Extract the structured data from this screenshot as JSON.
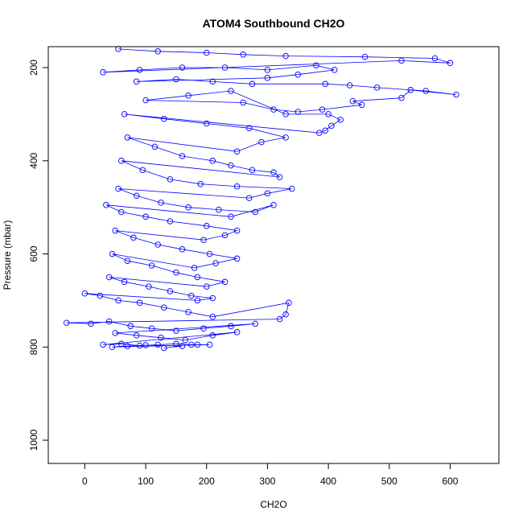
{
  "chart_data": {
    "type": "scatter",
    "title": "ATOM4 Southbound CH2O",
    "xlabel": "CH2O",
    "ylabel": "Pressure (mbar)",
    "xlim": [
      -60,
      680
    ],
    "ylim": [
      1050,
      155
    ],
    "y_reversed": true,
    "x_ticks": [
      0,
      100,
      200,
      300,
      400,
      500,
      600
    ],
    "y_ticks": [
      200,
      400,
      600,
      800,
      1000
    ],
    "marker": "open-circle",
    "connect_points": true,
    "grid": false,
    "legend": "none",
    "series_color": "#0000ff",
    "points": [
      [
        55,
        160
      ],
      [
        120,
        165
      ],
      [
        200,
        168
      ],
      [
        260,
        172
      ],
      [
        330,
        175
      ],
      [
        460,
        177
      ],
      [
        575,
        180
      ],
      [
        600,
        190
      ],
      [
        520,
        185
      ],
      [
        30,
        210
      ],
      [
        90,
        205
      ],
      [
        160,
        200
      ],
      [
        230,
        200
      ],
      [
        300,
        205
      ],
      [
        380,
        195
      ],
      [
        410,
        205
      ],
      [
        350,
        215
      ],
      [
        300,
        222
      ],
      [
        85,
        230
      ],
      [
        150,
        225
      ],
      [
        210,
        230
      ],
      [
        275,
        235
      ],
      [
        395,
        235
      ],
      [
        435,
        238
      ],
      [
        480,
        243
      ],
      [
        560,
        250
      ],
      [
        610,
        258
      ],
      [
        535,
        248
      ],
      [
        520,
        265
      ],
      [
        440,
        272
      ],
      [
        455,
        280
      ],
      [
        390,
        290
      ],
      [
        350,
        295
      ],
      [
        310,
        290
      ],
      [
        260,
        275
      ],
      [
        100,
        270
      ],
      [
        170,
        260
      ],
      [
        240,
        250
      ],
      [
        330,
        300
      ],
      [
        400,
        300
      ],
      [
        420,
        312
      ],
      [
        405,
        325
      ],
      [
        395,
        335
      ],
      [
        385,
        340
      ],
      [
        65,
        300
      ],
      [
        130,
        310
      ],
      [
        200,
        320
      ],
      [
        270,
        330
      ],
      [
        330,
        350
      ],
      [
        290,
        360
      ],
      [
        250,
        380
      ],
      [
        70,
        350
      ],
      [
        115,
        370
      ],
      [
        160,
        390
      ],
      [
        210,
        400
      ],
      [
        240,
        410
      ],
      [
        275,
        420
      ],
      [
        310,
        425
      ],
      [
        320,
        435
      ],
      [
        60,
        400
      ],
      [
        95,
        420
      ],
      [
        140,
        440
      ],
      [
        190,
        450
      ],
      [
        250,
        455
      ],
      [
        340,
        460
      ],
      [
        300,
        470
      ],
      [
        270,
        480
      ],
      [
        55,
        460
      ],
      [
        85,
        475
      ],
      [
        125,
        490
      ],
      [
        170,
        500
      ],
      [
        220,
        505
      ],
      [
        280,
        510
      ],
      [
        310,
        495
      ],
      [
        240,
        520
      ],
      [
        35,
        495
      ],
      [
        60,
        510
      ],
      [
        100,
        520
      ],
      [
        140,
        530
      ],
      [
        200,
        540
      ],
      [
        250,
        550
      ],
      [
        230,
        560
      ],
      [
        195,
        570
      ],
      [
        50,
        550
      ],
      [
        80,
        565
      ],
      [
        120,
        580
      ],
      [
        160,
        590
      ],
      [
        205,
        600
      ],
      [
        250,
        610
      ],
      [
        215,
        620
      ],
      [
        180,
        630
      ],
      [
        45,
        600
      ],
      [
        70,
        615
      ],
      [
        110,
        625
      ],
      [
        150,
        640
      ],
      [
        185,
        650
      ],
      [
        230,
        660
      ],
      [
        200,
        670
      ],
      [
        40,
        650
      ],
      [
        65,
        660
      ],
      [
        105,
        670
      ],
      [
        140,
        680
      ],
      [
        175,
        690
      ],
      [
        210,
        695
      ],
      [
        185,
        700
      ],
      [
        0,
        685
      ],
      [
        25,
        690
      ],
      [
        55,
        700
      ],
      [
        90,
        705
      ],
      [
        130,
        715
      ],
      [
        170,
        725
      ],
      [
        210,
        735
      ],
      [
        335,
        705
      ],
      [
        330,
        730
      ],
      [
        320,
        740
      ],
      [
        -30,
        748
      ],
      [
        10,
        750
      ],
      [
        40,
        745
      ],
      [
        75,
        755
      ],
      [
        110,
        760
      ],
      [
        150,
        765
      ],
      [
        195,
        760
      ],
      [
        240,
        755
      ],
      [
        280,
        750
      ],
      [
        50,
        770
      ],
      [
        85,
        775
      ],
      [
        125,
        780
      ],
      [
        165,
        785
      ],
      [
        210,
        775
      ],
      [
        250,
        768
      ],
      [
        30,
        795
      ],
      [
        60,
        793
      ],
      [
        90,
        797
      ],
      [
        120,
        795
      ],
      [
        150,
        793
      ],
      [
        175,
        795
      ],
      [
        185,
        795
      ],
      [
        205,
        795
      ],
      [
        45,
        800
      ],
      [
        70,
        798
      ],
      [
        100,
        796
      ],
      [
        160,
        798
      ],
      [
        130,
        802
      ]
    ]
  }
}
